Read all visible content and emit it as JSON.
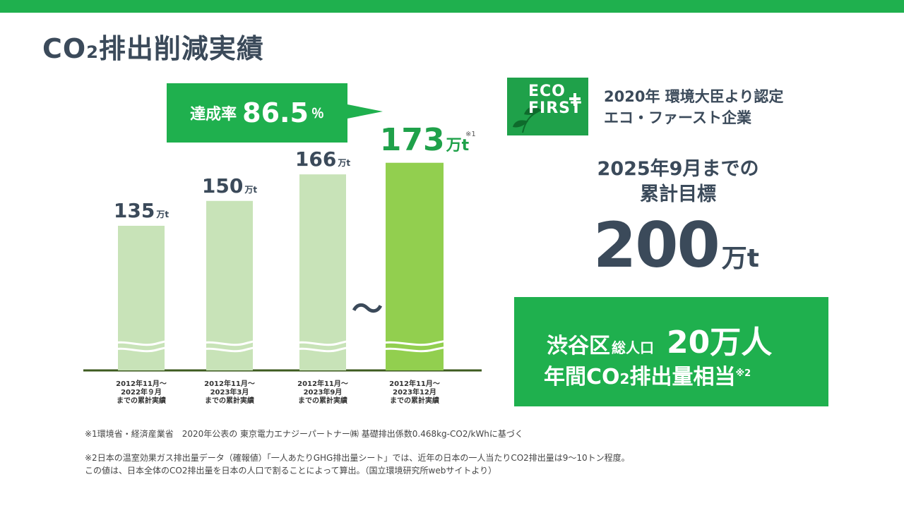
{
  "page": {
    "title_main_before": "CO",
    "title_sub": "2",
    "title_main_after": "排出削減実績"
  },
  "achievement": {
    "label": "達成率",
    "value": "86.5",
    "unit": "％"
  },
  "chart_data": {
    "type": "bar",
    "categories": [
      "2012年11月～\n2022年９月\nまでの累計実績",
      "2012年11月～\n2023年3月\nまでの累計実績",
      "2012年11月～\n2023年9月\nまでの累計実績",
      "2012年11月～\n2023年12月\nまでの累計実績"
    ],
    "values": [
      135,
      150,
      166,
      173
    ],
    "value_labels": [
      "135",
      "150",
      "166",
      "173"
    ],
    "unit": "万t",
    "note_mark": "※1",
    "tilde": "～",
    "colors": {
      "bar": "#c8e3b8",
      "bar_highlight": "#92cf4f",
      "baseline": "#3d5a1f"
    },
    "title": "",
    "xlabel": "",
    "ylabel": "",
    "broken_axis": true
  },
  "eco_first": {
    "logo_text": "ECO\nFIRST",
    "description": "2020年 環境大臣より認定\nエコ・ファースト企業"
  },
  "goal": {
    "label": "2025年9月までの\n累計目標",
    "value": "200",
    "unit": "万t"
  },
  "shibuya": {
    "line1_a": "渋谷区",
    "line1_b": "総人口",
    "line1_c": "20万人",
    "line2_a": "年間CO",
    "line2_sub": "2",
    "line2_b": "排出量相当",
    "line2_sup": "※2"
  },
  "footnotes": {
    "note1": "※1環境省・経済産業省　2020年公表の 東京電力エナジーパートナー㈱ 基礎排出係数0.468kg-CO2/kWhに基づく",
    "note2": "※2日本の温室効果ガス排出量データ（確報値）「一人あたりGHG排出量シート」では、近年の日本の一人当たりCO2排出量は9～10トン程度。\nこの値は、日本全体のCO2排出量を日本の人口で割ることによって算出。（国立環境研究所webサイトより）"
  },
  "colors": {
    "accent": "#1fb04e",
    "text": "#3b4a5a",
    "highlight_text": "#1fa14a"
  }
}
